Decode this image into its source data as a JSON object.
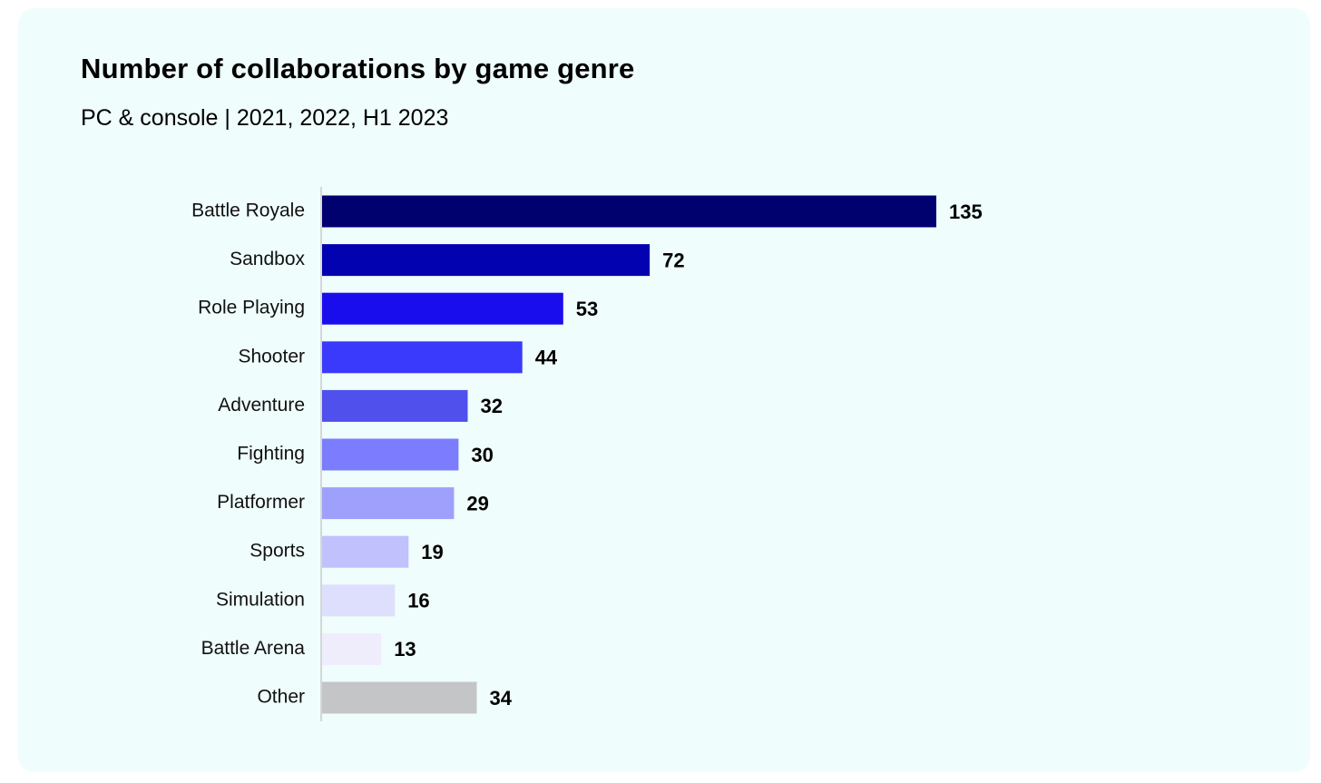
{
  "chart_data": {
    "type": "bar",
    "orientation": "horizontal",
    "title": "Number of collaborations by game genre",
    "subtitle": "PC & console | 2021, 2022, H1 2023",
    "xlabel": "",
    "ylabel": "",
    "grid": false,
    "xlim": [
      0,
      135
    ],
    "categories": [
      "Battle Royale",
      "Sandbox",
      "Role Playing",
      "Shooter",
      "Adventure",
      "Fighting",
      "Platformer",
      "Sports",
      "Simulation",
      "Battle Arena",
      "Other"
    ],
    "values": [
      135,
      72,
      53,
      44,
      32,
      30,
      29,
      19,
      16,
      13,
      34
    ],
    "colors": [
      "#00006e",
      "#0202b0",
      "#1a0ded",
      "#3a3afd",
      "#5050ed",
      "#7b7dfe",
      "#9ea0fc",
      "#c0c1fd",
      "#dedffd",
      "#efedfc",
      "#c4c5c6"
    ]
  },
  "colors": {
    "card_background": "#effdfc",
    "axis_line": "#c8cccc",
    "text": "#000000"
  }
}
